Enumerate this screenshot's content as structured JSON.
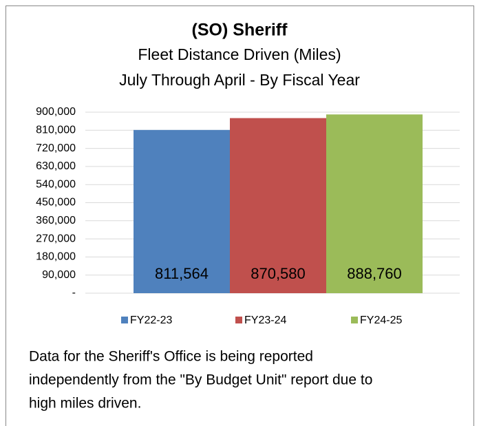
{
  "chart_data": {
    "type": "bar",
    "title": "(SO) Sheriff",
    "subtitle": [
      "Fleet Distance Driven (Miles)",
      "July Through April - By Fiscal Year"
    ],
    "categories": [
      null
    ],
    "series": [
      {
        "name": "FY22-23",
        "color": "#4f81bd",
        "values": [
          811564
        ],
        "value_labels": [
          "811,564"
        ]
      },
      {
        "name": "FY23-24",
        "color": "#c0504d",
        "values": [
          870580
        ],
        "value_labels": [
          "870,580"
        ]
      },
      {
        "name": "FY24-25",
        "color": "#9bbb59",
        "values": [
          888760
        ],
        "value_labels": [
          "888,760"
        ]
      }
    ],
    "ylim": [
      0,
      900000
    ],
    "yticks": [
      {
        "value": 0,
        "label": "-"
      },
      {
        "value": 90000,
        "label": "90,000"
      },
      {
        "value": 180000,
        "label": "180,000"
      },
      {
        "value": 270000,
        "label": "270,000"
      },
      {
        "value": 360000,
        "label": "360,000"
      },
      {
        "value": 450000,
        "label": "450,000"
      },
      {
        "value": 540000,
        "label": "540,000"
      },
      {
        "value": 630000,
        "label": "630,000"
      },
      {
        "value": 720000,
        "label": "720,000"
      },
      {
        "value": 810000,
        "label": "810,000"
      },
      {
        "value": 900000,
        "label": "900,000"
      }
    ],
    "grid": true,
    "legend": "bottom"
  },
  "footnote": [
    "Data for the Sheriff's Office is being reported",
    "independently from the \"By Budget Unit\" report due to",
    "high miles driven."
  ]
}
